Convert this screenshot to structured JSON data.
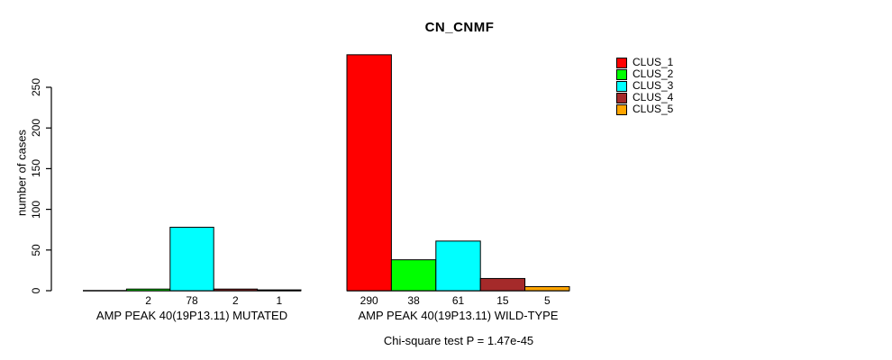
{
  "chart_data": {
    "type": "bar",
    "title": "CN_CNMF",
    "ylabel": "number of cases",
    "xlabel": "",
    "ylim": [
      0,
      250
    ],
    "yticks": [
      0,
      50,
      100,
      150,
      200,
      250
    ],
    "grid": false,
    "legend_position": "top-right",
    "series": [
      {
        "name": "CLUS_1",
        "color": "#FF0000"
      },
      {
        "name": "CLUS_2",
        "color": "#00FF00"
      },
      {
        "name": "CLUS_3",
        "color": "#00FFFF"
      },
      {
        "name": "CLUS_4",
        "color": "#A52A2A"
      },
      {
        "name": "CLUS_5",
        "color": "#FFA500"
      }
    ],
    "groups": [
      {
        "label": "AMP PEAK 40(19P13.11) MUTATED",
        "values": [
          0,
          2,
          78,
          2,
          1
        ],
        "value_labels": [
          "",
          "2",
          "78",
          "2",
          "1"
        ]
      },
      {
        "label": "AMP PEAK 40(19P13.11) WILD-TYPE",
        "values": [
          290,
          38,
          61,
          15,
          5
        ],
        "value_labels": [
          "290",
          "38",
          "61",
          "15",
          "5"
        ]
      }
    ],
    "annotation": "Chi-square test P = 1.47e-45"
  },
  "colors": {
    "axis": "#000000",
    "background": "#FFFFFF",
    "bar_border": "#000000"
  }
}
